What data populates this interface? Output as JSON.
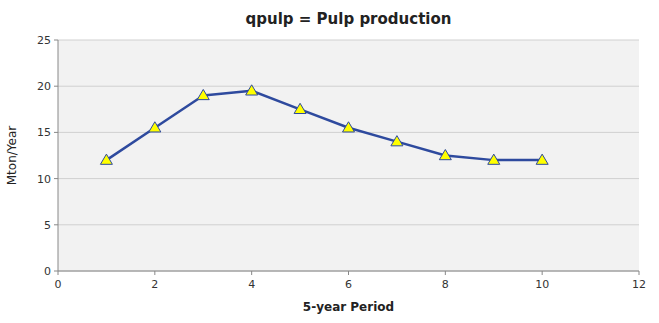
{
  "chart_data": {
    "type": "line",
    "title": "qpulp = Pulp production",
    "xlabel": "5-year Period",
    "ylabel": "Mton/Year",
    "x": [
      1,
      2,
      3,
      4,
      5,
      6,
      7,
      8,
      9,
      10
    ],
    "values": [
      12.0,
      15.5,
      19.0,
      19.5,
      17.5,
      15.5,
      14.0,
      12.5,
      12.0,
      12.0
    ],
    "color": "#2E4A9E",
    "marker": "triangle",
    "xlim": [
      0,
      12
    ],
    "ylim": [
      0,
      25
    ],
    "xticks": [
      0,
      2,
      4,
      6,
      8,
      10,
      12
    ],
    "yticks": [
      0,
      5,
      10,
      15,
      20,
      25
    ],
    "grid": true
  }
}
